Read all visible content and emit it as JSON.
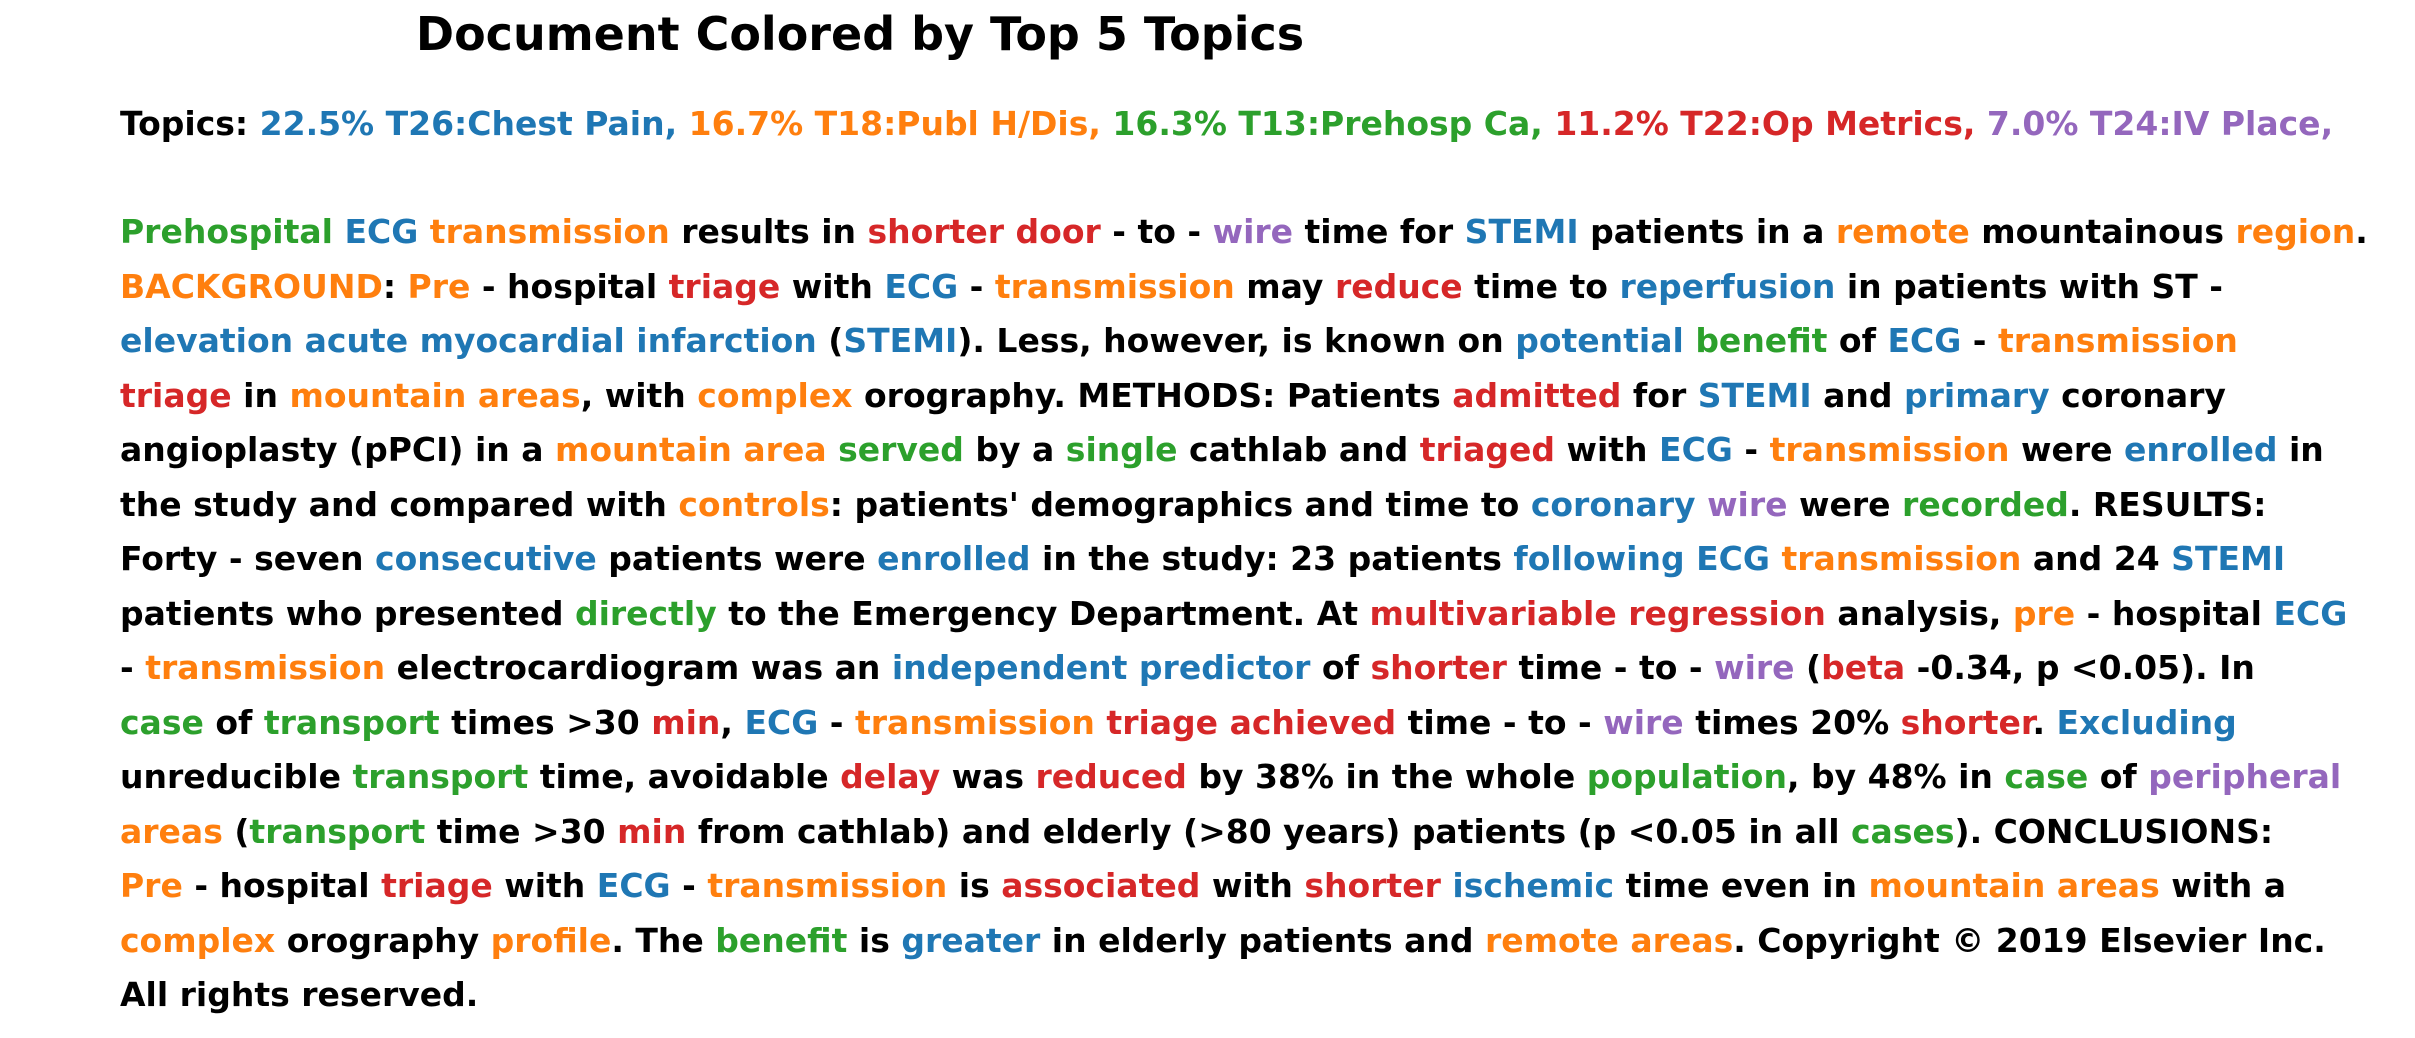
{
  "title": "Document Colored by Top 5 Topics",
  "topics_label": "Topics:",
  "topic_colors": {
    "T26": "#1f77b4",
    "T18": "#ff7f0e",
    "T13": "#2ca02c",
    "T22": "#d62728",
    "T24": "#9467bd",
    "none": "#000000"
  },
  "topics": [
    {
      "id": "T26",
      "text": "22.5% T26:Chest Pain,"
    },
    {
      "id": "T18",
      "text": "16.7% T18:Publ H/Dis,"
    },
    {
      "id": "T13",
      "text": "16.3% T13:Prehosp Ca,"
    },
    {
      "id": "T22",
      "text": "11.2% T22:Op Metrics,"
    },
    {
      "id": "T24",
      "text": "7.0% T24:IV Place,"
    }
  ],
  "document_lines": [
    [
      [
        "Prehospital",
        "T13"
      ],
      [
        " ",
        ""
      ],
      [
        "ECG",
        "T26"
      ],
      [
        " ",
        ""
      ],
      [
        "transmission",
        "T18"
      ],
      [
        " results in ",
        ""
      ],
      [
        "shorter",
        "T22"
      ],
      [
        " ",
        ""
      ],
      [
        "door",
        "T22"
      ],
      [
        " - to - ",
        ""
      ],
      [
        "wire",
        "T24"
      ],
      [
        " time for ",
        ""
      ],
      [
        "STEMI",
        "T26"
      ],
      [
        " patients in a ",
        ""
      ],
      [
        "remote",
        "T18"
      ],
      [
        " mountainous ",
        ""
      ],
      [
        "region",
        "T18"
      ],
      [
        ".",
        ""
      ]
    ],
    [
      [
        "BACKGROUND",
        "T18"
      ],
      [
        ": ",
        ""
      ],
      [
        "Pre",
        "T18"
      ],
      [
        " - hospital ",
        ""
      ],
      [
        "triage",
        "T22"
      ],
      [
        " with ",
        ""
      ],
      [
        "ECG",
        "T26"
      ],
      [
        " - ",
        ""
      ],
      [
        "transmission",
        "T18"
      ],
      [
        " may ",
        ""
      ],
      [
        "reduce",
        "T22"
      ],
      [
        " time to ",
        ""
      ],
      [
        "reperfusion",
        "T26"
      ],
      [
        " in patients with ST -",
        ""
      ]
    ],
    [
      [
        "elevation",
        "T26"
      ],
      [
        " ",
        ""
      ],
      [
        "acute",
        "T26"
      ],
      [
        " ",
        ""
      ],
      [
        "myocardial",
        "T26"
      ],
      [
        " ",
        ""
      ],
      [
        "infarction",
        "T26"
      ],
      [
        " (",
        ""
      ],
      [
        "STEMI",
        "T26"
      ],
      [
        "). Less, however, is known on ",
        ""
      ],
      [
        "potential",
        "T26"
      ],
      [
        " ",
        ""
      ],
      [
        "benefit",
        "T13"
      ],
      [
        " of ",
        ""
      ],
      [
        "ECG",
        "T26"
      ],
      [
        " - ",
        ""
      ],
      [
        "transmission",
        "T18"
      ]
    ],
    [
      [
        "triage",
        "T22"
      ],
      [
        " in ",
        ""
      ],
      [
        "mountain",
        "T18"
      ],
      [
        " ",
        ""
      ],
      [
        "areas",
        "T18"
      ],
      [
        ", with ",
        ""
      ],
      [
        "complex",
        "T18"
      ],
      [
        " orography. METHODS: Patients ",
        ""
      ],
      [
        "admitted",
        "T22"
      ],
      [
        " for ",
        ""
      ],
      [
        "STEMI",
        "T26"
      ],
      [
        " and ",
        ""
      ],
      [
        "primary",
        "T26"
      ],
      [
        " coronary",
        ""
      ]
    ],
    [
      [
        "angioplasty (pPCI) in a ",
        ""
      ],
      [
        "mountain",
        "T18"
      ],
      [
        " ",
        ""
      ],
      [
        "area",
        "T18"
      ],
      [
        " ",
        ""
      ],
      [
        "served",
        "T13"
      ],
      [
        " by a ",
        ""
      ],
      [
        "single",
        "T13"
      ],
      [
        " cathlab and ",
        ""
      ],
      [
        "triaged",
        "T22"
      ],
      [
        " with ",
        ""
      ],
      [
        "ECG",
        "T26"
      ],
      [
        " - ",
        ""
      ],
      [
        "transmission",
        "T18"
      ],
      [
        " were ",
        ""
      ],
      [
        "enrolled",
        "T26"
      ],
      [
        " in",
        ""
      ]
    ],
    [
      [
        "the study and compared with ",
        ""
      ],
      [
        "controls",
        "T18"
      ],
      [
        ": patients' demographics and time to ",
        ""
      ],
      [
        "coronary",
        "T26"
      ],
      [
        " ",
        ""
      ],
      [
        "wire",
        "T24"
      ],
      [
        " were ",
        ""
      ],
      [
        "recorded",
        "T13"
      ],
      [
        ". RESULTS:",
        ""
      ]
    ],
    [
      [
        "Forty - seven ",
        ""
      ],
      [
        "consecutive",
        "T26"
      ],
      [
        " patients were ",
        ""
      ],
      [
        "enrolled",
        "T26"
      ],
      [
        " in the study: 23 patients ",
        ""
      ],
      [
        "following",
        "T26"
      ],
      [
        " ",
        ""
      ],
      [
        "ECG",
        "T26"
      ],
      [
        " ",
        ""
      ],
      [
        "transmission",
        "T18"
      ],
      [
        " and 24 ",
        ""
      ],
      [
        "STEMI",
        "T26"
      ]
    ],
    [
      [
        "patients who presented ",
        ""
      ],
      [
        "directly",
        "T13"
      ],
      [
        " to the Emergency Department. At ",
        ""
      ],
      [
        "multivariable",
        "T22"
      ],
      [
        " ",
        ""
      ],
      [
        "regression",
        "T22"
      ],
      [
        " analysis, ",
        ""
      ],
      [
        "pre",
        "T18"
      ],
      [
        " - hospital ",
        ""
      ],
      [
        "ECG",
        "T26"
      ]
    ],
    [
      [
        "- ",
        ""
      ],
      [
        "transmission",
        "T18"
      ],
      [
        " electrocardiogram was an ",
        ""
      ],
      [
        "independent",
        "T26"
      ],
      [
        " ",
        ""
      ],
      [
        "predictor",
        "T26"
      ],
      [
        " of ",
        ""
      ],
      [
        "shorter",
        "T22"
      ],
      [
        " time - to - ",
        ""
      ],
      [
        "wire",
        "T24"
      ],
      [
        " (",
        ""
      ],
      [
        "beta",
        "T22"
      ],
      [
        " -0.34, p <0.05). In",
        ""
      ]
    ],
    [
      [
        "case",
        "T13"
      ],
      [
        " of ",
        ""
      ],
      [
        "transport",
        "T13"
      ],
      [
        " times >30 ",
        ""
      ],
      [
        "min",
        "T22"
      ],
      [
        ", ",
        ""
      ],
      [
        "ECG",
        "T26"
      ],
      [
        " - ",
        ""
      ],
      [
        "transmission",
        "T18"
      ],
      [
        " ",
        ""
      ],
      [
        "triage",
        "T22"
      ],
      [
        " ",
        ""
      ],
      [
        "achieved",
        "T22"
      ],
      [
        " time - to - ",
        ""
      ],
      [
        "wire",
        "T24"
      ],
      [
        " times 20% ",
        ""
      ],
      [
        "shorter",
        "T22"
      ],
      [
        ". ",
        ""
      ],
      [
        "Excluding",
        "T26"
      ]
    ],
    [
      [
        "unreducible ",
        ""
      ],
      [
        "transport",
        "T13"
      ],
      [
        " time, avoidable ",
        ""
      ],
      [
        "delay",
        "T22"
      ],
      [
        " was ",
        ""
      ],
      [
        "reduced",
        "T22"
      ],
      [
        " by 38% in the whole ",
        ""
      ],
      [
        "population",
        "T13"
      ],
      [
        ", by 48% in ",
        ""
      ],
      [
        "case",
        "T13"
      ],
      [
        " of ",
        ""
      ],
      [
        "peripheral",
        "T24"
      ]
    ],
    [
      [
        "areas",
        "T18"
      ],
      [
        " (",
        ""
      ],
      [
        "transport",
        "T13"
      ],
      [
        " time >30 ",
        ""
      ],
      [
        "min",
        "T22"
      ],
      [
        " from cathlab) and elderly (>80 years) patients (p <0.05 in all ",
        ""
      ],
      [
        "cases",
        "T13"
      ],
      [
        "). CONCLUSIONS:",
        ""
      ]
    ],
    [
      [
        "Pre",
        "T18"
      ],
      [
        " - hospital ",
        ""
      ],
      [
        "triage",
        "T22"
      ],
      [
        " with ",
        ""
      ],
      [
        "ECG",
        "T26"
      ],
      [
        " - ",
        ""
      ],
      [
        "transmission",
        "T18"
      ],
      [
        " is ",
        ""
      ],
      [
        "associated",
        "T22"
      ],
      [
        " with ",
        ""
      ],
      [
        "shorter",
        "T22"
      ],
      [
        " ",
        ""
      ],
      [
        "ischemic",
        "T26"
      ],
      [
        " time even in ",
        ""
      ],
      [
        "mountain",
        "T18"
      ],
      [
        " ",
        ""
      ],
      [
        "areas",
        "T18"
      ],
      [
        " with a",
        ""
      ]
    ],
    [
      [
        "complex",
        "T18"
      ],
      [
        " orography ",
        ""
      ],
      [
        "profile",
        "T18"
      ],
      [
        ". The ",
        ""
      ],
      [
        "benefit",
        "T13"
      ],
      [
        " is ",
        ""
      ],
      [
        "greater",
        "T26"
      ],
      [
        " in elderly patients and ",
        ""
      ],
      [
        "remote",
        "T18"
      ],
      [
        " ",
        ""
      ],
      [
        "areas",
        "T18"
      ],
      [
        ". Copyright © 2019 Elsevier Inc.",
        ""
      ]
    ],
    [
      [
        "All rights reserved.",
        ""
      ]
    ]
  ]
}
